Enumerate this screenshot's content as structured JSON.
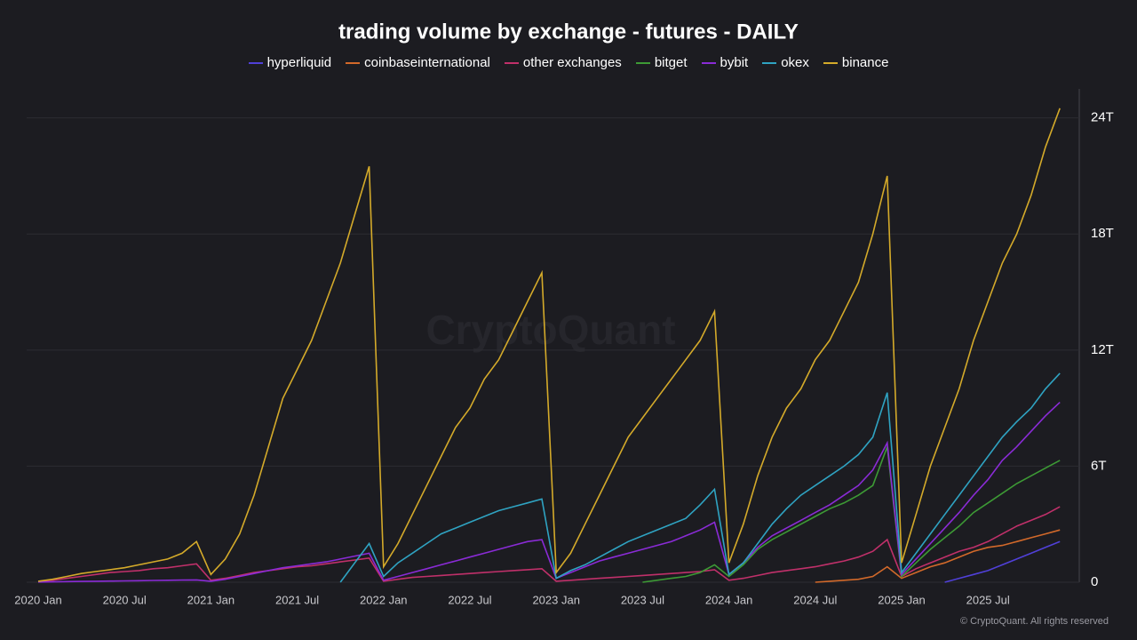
{
  "chart_data": {
    "type": "line",
    "title": "trading volume by exchange - futures - DAILY",
    "watermark": "CryptoQuant",
    "credit": "© CryptoQuant. All rights reserved",
    "x": [
      "2020 Jan",
      "2020 Feb",
      "2020 Mar",
      "2020 Apr",
      "2020 May",
      "2020 Jun",
      "2020 Jul",
      "2020 Aug",
      "2020 Sep",
      "2020 Oct",
      "2020 Nov",
      "2020 Dec",
      "2021 Jan",
      "2021 Feb",
      "2021 Mar",
      "2021 Apr",
      "2021 May",
      "2021 Jun",
      "2021 Jul",
      "2021 Aug",
      "2021 Sep",
      "2021 Oct",
      "2021 Nov",
      "2021 Dec",
      "2022 Jan",
      "2022 Feb",
      "2022 Mar",
      "2022 Apr",
      "2022 May",
      "2022 Jun",
      "2022 Jul",
      "2022 Aug",
      "2022 Sep",
      "2022 Oct",
      "2022 Nov",
      "2022 Dec",
      "2023 Jan",
      "2023 Feb",
      "2023 Mar",
      "2023 Apr",
      "2023 May",
      "2023 Jun",
      "2023 Jul",
      "2023 Aug",
      "2023 Sep",
      "2023 Oct",
      "2023 Nov",
      "2023 Dec",
      "2024 Jan",
      "2024 Feb",
      "2024 Mar",
      "2024 Apr",
      "2024 May",
      "2024 Jun",
      "2024 Jul",
      "2024 Aug",
      "2024 Sep",
      "2024 Oct",
      "2024 Nov",
      "2024 Dec",
      "2025 Jan",
      "2025 Feb",
      "2025 Mar",
      "2025 Apr",
      "2025 May",
      "2025 Jun",
      "2025 Jul",
      "2025 Aug",
      "2025 Sep",
      "2025 Oct",
      "2025 Nov",
      "2025 Dec"
    ],
    "series": [
      {
        "name": "hyperliquid",
        "color": "#5040d8",
        "values": [
          null,
          null,
          null,
          null,
          null,
          null,
          null,
          null,
          null,
          null,
          null,
          null,
          null,
          null,
          null,
          null,
          null,
          null,
          null,
          null,
          null,
          null,
          null,
          null,
          null,
          null,
          null,
          null,
          null,
          null,
          null,
          null,
          null,
          null,
          null,
          null,
          null,
          null,
          null,
          null,
          null,
          null,
          null,
          null,
          null,
          null,
          null,
          null,
          null,
          null,
          null,
          null,
          null,
          null,
          null,
          null,
          null,
          null,
          null,
          null,
          null,
          null,
          null,
          0,
          0.2,
          0.4,
          0.6,
          0.9,
          1.2,
          1.5,
          1.8,
          2.1
        ]
      },
      {
        "name": "coinbaseinternational",
        "color": "#d2692a",
        "values": [
          null,
          null,
          null,
          null,
          null,
          null,
          null,
          null,
          null,
          null,
          null,
          null,
          null,
          null,
          null,
          null,
          null,
          null,
          null,
          null,
          null,
          null,
          null,
          null,
          null,
          null,
          null,
          null,
          null,
          null,
          null,
          null,
          null,
          null,
          null,
          null,
          null,
          null,
          null,
          null,
          null,
          null,
          null,
          null,
          null,
          null,
          null,
          null,
          null,
          null,
          null,
          null,
          null,
          null,
          0,
          0.05,
          0.1,
          0.15,
          0.3,
          0.8,
          0.2,
          0.5,
          0.8,
          1,
          1.3,
          1.6,
          1.8,
          1.9,
          2.1,
          2.3,
          2.5,
          2.7
        ]
      },
      {
        "name": "other exchanges",
        "color": "#c0306a",
        "values": [
          0.05,
          0.1,
          0.2,
          0.3,
          0.4,
          0.5,
          0.55,
          0.6,
          0.7,
          0.75,
          0.85,
          0.95,
          0.1,
          0.2,
          0.35,
          0.5,
          0.6,
          0.7,
          0.8,
          0.85,
          0.95,
          1.05,
          1.15,
          1.25,
          0.05,
          0.15,
          0.25,
          0.3,
          0.35,
          0.4,
          0.45,
          0.5,
          0.55,
          0.6,
          0.65,
          0.7,
          0.05,
          0.1,
          0.15,
          0.2,
          0.25,
          0.3,
          0.35,
          0.4,
          0.45,
          0.5,
          0.55,
          0.65,
          0.1,
          0.2,
          0.35,
          0.5,
          0.6,
          0.7,
          0.8,
          0.95,
          1.1,
          1.3,
          1.6,
          2.2,
          0.3,
          0.7,
          1,
          1.3,
          1.6,
          1.8,
          2.1,
          2.5,
          2.9,
          3.2,
          3.5,
          3.9
        ]
      },
      {
        "name": "bitget",
        "color": "#3d9a35",
        "values": [
          null,
          null,
          null,
          null,
          null,
          null,
          null,
          null,
          null,
          null,
          null,
          null,
          null,
          null,
          null,
          null,
          null,
          null,
          null,
          null,
          null,
          null,
          null,
          null,
          null,
          null,
          null,
          null,
          null,
          null,
          null,
          null,
          null,
          null,
          null,
          null,
          null,
          null,
          null,
          null,
          null,
          null,
          0,
          0.1,
          0.2,
          0.3,
          0.5,
          0.9,
          0.3,
          0.9,
          1.7,
          2.2,
          2.6,
          3,
          3.4,
          3.8,
          4.1,
          4.5,
          5,
          7,
          0.3,
          1,
          1.7,
          2.3,
          2.9,
          3.6,
          4.1,
          4.6,
          5.1,
          5.5,
          5.9,
          6.3
        ]
      },
      {
        "name": "bybit",
        "color": "#8a2bd6",
        "values": [
          0.01,
          0.02,
          0.03,
          0.04,
          0.05,
          0.06,
          0.07,
          0.08,
          0.09,
          0.1,
          0.11,
          0.12,
          0.05,
          0.15,
          0.3,
          0.45,
          0.6,
          0.75,
          0.85,
          0.95,
          1.05,
          1.2,
          1.35,
          1.5,
          0.1,
          0.3,
          0.5,
          0.7,
          0.9,
          1.1,
          1.3,
          1.5,
          1.7,
          1.9,
          2.1,
          2.2,
          0.2,
          0.5,
          0.8,
          1.1,
          1.3,
          1.5,
          1.7,
          1.9,
          2.1,
          2.4,
          2.7,
          3.1,
          0.4,
          1,
          1.8,
          2.4,
          2.8,
          3.2,
          3.6,
          4,
          4.5,
          5,
          5.8,
          7.2,
          0.4,
          1.2,
          2,
          2.8,
          3.6,
          4.5,
          5.3,
          6.3,
          7,
          7.8,
          8.6,
          9.3
        ]
      },
      {
        "name": "okex",
        "color": "#2fa3c2",
        "values": [
          null,
          null,
          null,
          null,
          null,
          null,
          null,
          null,
          null,
          null,
          null,
          null,
          null,
          null,
          null,
          null,
          null,
          null,
          null,
          null,
          null,
          0,
          1,
          2,
          0.3,
          1,
          1.5,
          2,
          2.5,
          2.8,
          3.1,
          3.4,
          3.7,
          3.9,
          4.1,
          4.3,
          0.2,
          0.6,
          0.9,
          1.3,
          1.7,
          2.1,
          2.4,
          2.7,
          3,
          3.3,
          4,
          4.8,
          0.4,
          1,
          2,
          3,
          3.8,
          4.5,
          5,
          5.5,
          6,
          6.6,
          7.5,
          9.8,
          0.5,
          1.5,
          2.5,
          3.5,
          4.5,
          5.5,
          6.5,
          7.5,
          8.3,
          9,
          10,
          10.8
        ]
      },
      {
        "name": "binance",
        "color": "#d4aa2a",
        "values": [
          0.05,
          0.15,
          0.3,
          0.45,
          0.55,
          0.65,
          0.75,
          0.9,
          1.05,
          1.2,
          1.5,
          2.1,
          0.4,
          1.2,
          2.5,
          4.5,
          7,
          9.5,
          11,
          12.5,
          14.5,
          16.5,
          19,
          21.5,
          0.8,
          2,
          3.5,
          5,
          6.5,
          8,
          9,
          10.5,
          11.5,
          13,
          14.5,
          16,
          0.5,
          1.5,
          3,
          4.5,
          6,
          7.5,
          8.5,
          9.5,
          10.5,
          11.5,
          12.5,
          14,
          1,
          3,
          5.5,
          7.5,
          9,
          10,
          11.5,
          12.5,
          14,
          15.5,
          18,
          21,
          1,
          3.5,
          6,
          8,
          10,
          12.5,
          14.5,
          16.5,
          18,
          20,
          22.5,
          24.5
        ]
      }
    ],
    "ylim": [
      0,
      25.5
    ],
    "yticks": [
      0,
      {
        "value": 6,
        "label": "6T"
      },
      {
        "value": 12,
        "label": "12T"
      },
      {
        "value": 18,
        "label": "18T"
      },
      {
        "value": 24,
        "label": "24T"
      }
    ],
    "grid": true
  }
}
